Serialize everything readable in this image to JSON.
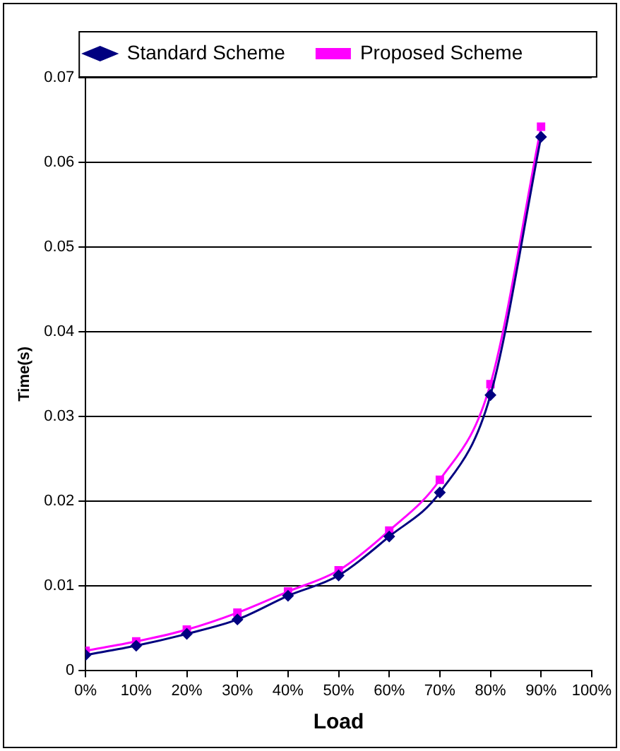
{
  "chart_data": {
    "type": "line",
    "xlabel": "Load",
    "ylabel": "Time(s)",
    "x": [
      0,
      10,
      20,
      30,
      40,
      50,
      60,
      70,
      80,
      90
    ],
    "series": [
      {
        "name": "Standard Scheme",
        "color": "#000080",
        "marker": "diamond",
        "values": [
          0.0018,
          0.0029,
          0.0043,
          0.006,
          0.0088,
          0.0112,
          0.0158,
          0.021,
          0.0325,
          0.063
        ]
      },
      {
        "name": "Proposed Scheme",
        "color": "#ff00ff",
        "marker": "square",
        "values": [
          0.0023,
          0.0034,
          0.0048,
          0.0068,
          0.0093,
          0.0118,
          0.0165,
          0.0225,
          0.0338,
          0.0642
        ]
      }
    ],
    "xlim": [
      0,
      100
    ],
    "xticks": [
      {
        "value": 0,
        "label": "0%"
      },
      {
        "value": 10,
        "label": "10%"
      },
      {
        "value": 20,
        "label": "20%"
      },
      {
        "value": 30,
        "label": "30%"
      },
      {
        "value": 40,
        "label": "40%"
      },
      {
        "value": 50,
        "label": "50%"
      },
      {
        "value": 60,
        "label": "60%"
      },
      {
        "value": 70,
        "label": "70%"
      },
      {
        "value": 80,
        "label": "80%"
      },
      {
        "value": 90,
        "label": "90%"
      },
      {
        "value": 100,
        "label": "100%"
      }
    ],
    "ylim": [
      0,
      0.07
    ],
    "yticks": [
      0,
      0.01,
      0.02,
      0.03,
      0.04,
      0.05,
      0.06,
      0.07
    ],
    "grid": "y",
    "legend": "top"
  }
}
